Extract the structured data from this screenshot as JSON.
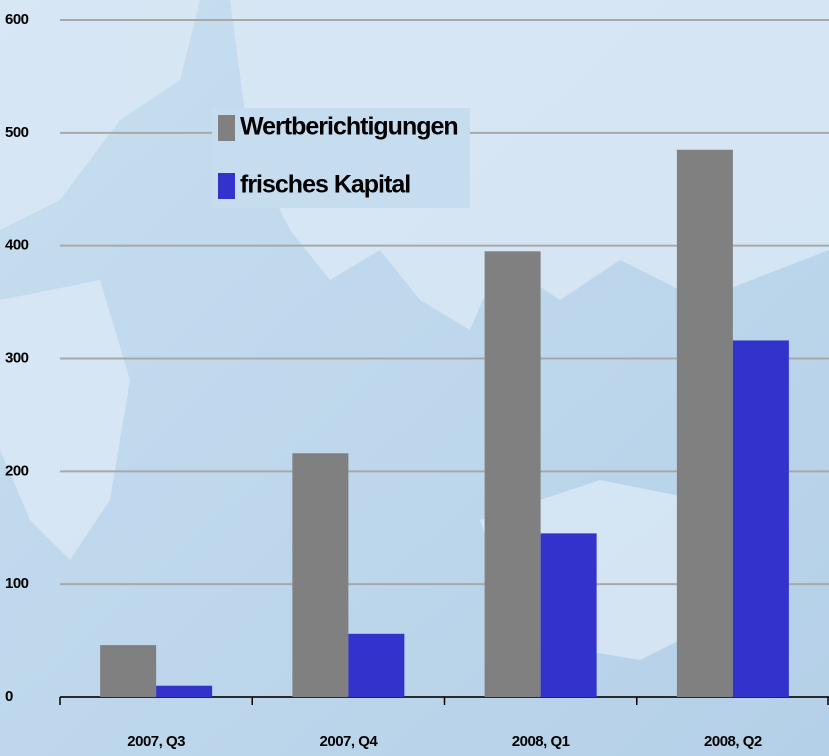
{
  "chart_data": {
    "type": "bar",
    "categories": [
      "2007, Q3",
      "2007, Q4",
      "2008, Q1",
      "2008, Q2"
    ],
    "series": [
      {
        "name": "Wertberichtigungen",
        "color": "#808080",
        "values": [
          46,
          216,
          395,
          485
        ]
      },
      {
        "name": "frisches Kapital",
        "color": "#3333cc",
        "values": [
          10,
          56,
          145,
          316
        ]
      }
    ],
    "ylim": [
      0,
      600
    ],
    "yticks": [
      0,
      100,
      200,
      300,
      400,
      500,
      600
    ],
    "grid": true,
    "legend": "top-left"
  }
}
